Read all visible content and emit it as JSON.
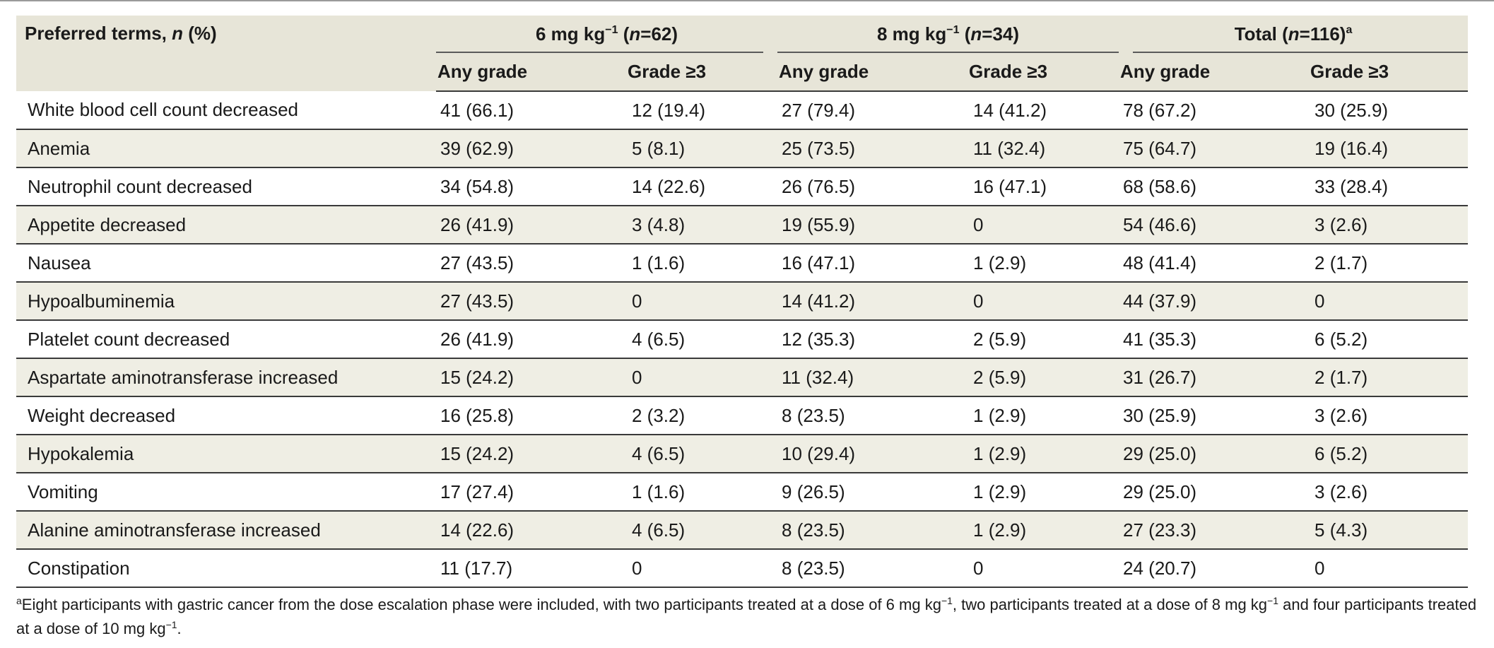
{
  "header": {
    "preferred_terms_label": "Preferred terms,",
    "n_italic": "n",
    "percent": "(%)",
    "groups": [
      {
        "dose": "6 mg kg",
        "exp": "−1",
        "n_label": "n",
        "n_value": "=62)",
        "note": ""
      },
      {
        "dose": "8 mg kg",
        "exp": "−1",
        "n_label": "n",
        "n_value": "=34)",
        "note": ""
      },
      {
        "dose": "Total (",
        "exp": "",
        "n_label": "n",
        "n_value": "=116)",
        "note": "a"
      }
    ],
    "sub_any": "Any grade",
    "sub_g3": "Grade ≥3"
  },
  "rows": [
    {
      "term": "White blood cell count decreased",
      "v": [
        "41 (66.1)",
        "12 (19.4)",
        "27 (79.4)",
        "14 (41.2)",
        "78 (67.2)",
        "30 (25.9)"
      ]
    },
    {
      "term": "Anemia",
      "v": [
        "39 (62.9)",
        "5 (8.1)",
        "25 (73.5)",
        "11 (32.4)",
        "75 (64.7)",
        "19 (16.4)"
      ]
    },
    {
      "term": "Neutrophil count decreased",
      "v": [
        "34 (54.8)",
        "14 (22.6)",
        "26 (76.5)",
        "16 (47.1)",
        "68 (58.6)",
        "33 (28.4)"
      ]
    },
    {
      "term": "Appetite decreased",
      "v": [
        "26 (41.9)",
        "3 (4.8)",
        "19 (55.9)",
        "0",
        "54 (46.6)",
        "3 (2.6)"
      ]
    },
    {
      "term": "Nausea",
      "v": [
        "27 (43.5)",
        "1 (1.6)",
        "16 (47.1)",
        "1 (2.9)",
        "48 (41.4)",
        "2 (1.7)"
      ]
    },
    {
      "term": "Hypoalbuminemia",
      "v": [
        "27 (43.5)",
        "0",
        "14 (41.2)",
        "0",
        "44 (37.9)",
        "0"
      ]
    },
    {
      "term": "Platelet count decreased",
      "v": [
        "26 (41.9)",
        "4 (6.5)",
        "12 (35.3)",
        "2 (5.9)",
        "41 (35.3)",
        "6 (5.2)"
      ]
    },
    {
      "term": "Aspartate aminotransferase increased",
      "v": [
        "15 (24.2)",
        "0",
        "11 (32.4)",
        "2 (5.9)",
        "31 (26.7)",
        "2 (1.7)"
      ]
    },
    {
      "term": "Weight decreased",
      "v": [
        "16 (25.8)",
        "2 (3.2)",
        "8 (23.5)",
        "1 (2.9)",
        "30 (25.9)",
        "3 (2.6)"
      ]
    },
    {
      "term": "Hypokalemia",
      "v": [
        "15 (24.2)",
        "4 (6.5)",
        "10 (29.4)",
        "1 (2.9)",
        "29 (25.0)",
        "6 (5.2)"
      ]
    },
    {
      "term": "Vomiting",
      "v": [
        "17 (27.4)",
        "1 (1.6)",
        "9 (26.5)",
        "1 (2.9)",
        "29 (25.0)",
        "3 (2.6)"
      ]
    },
    {
      "term": "Alanine aminotransferase increased",
      "v": [
        "14 (22.6)",
        "4 (6.5)",
        "8 (23.5)",
        "1 (2.9)",
        "27 (23.3)",
        "5 (4.3)"
      ]
    },
    {
      "term": "Constipation",
      "v": [
        "11 (17.7)",
        "0",
        "8 (23.5)",
        "0",
        "24 (20.7)",
        "0"
      ]
    }
  ],
  "footnote": {
    "marker": "a",
    "part1": "Eight participants with gastric cancer from the dose escalation phase were included, with two participants treated at a dose of 6 mg kg",
    "exp1": "−1",
    "part2": ", two participants treated at a dose of 8 mg kg",
    "exp2": "−1",
    "part3": " and four participants treated at a dose of 10 mg kg",
    "exp3": "−1",
    "part4": "."
  }
}
